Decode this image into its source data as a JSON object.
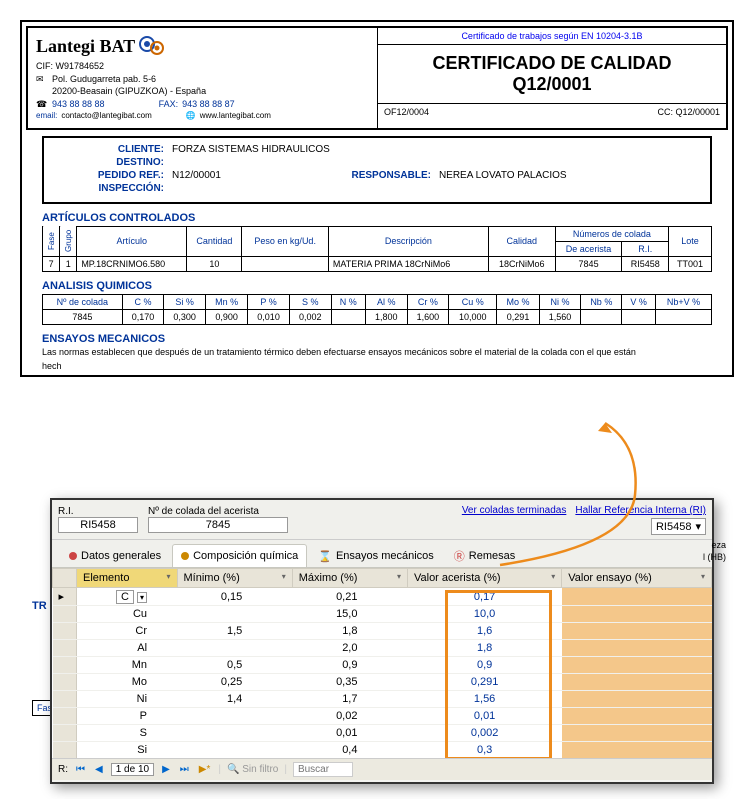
{
  "header": {
    "logo_text": "Lantegi BAT",
    "cif": "CIF: W91784652",
    "address1": "Pol. Gudugarreta pab. 5-6",
    "address2": "20200-Beasain (GIPUZKOA) - España",
    "phone_icon": "📞",
    "phone": "943 88 88 88",
    "fax_label": "FAX:",
    "fax": "943 88 88 87",
    "email_label": "email:",
    "email": "contacto@lantegibat.com",
    "web": "www.lantegibat.com",
    "cert_norm": "Certificado de trabajos según EN 10204-3.1B",
    "cert_title": "CERTIFICADO DE CALIDAD",
    "cert_num": "Q12/0001",
    "of_ref": "OF12/0004",
    "cc_ref": "CC: Q12/00001"
  },
  "client": {
    "cliente_lbl": "CLIENTE:",
    "cliente": "FORZA SISTEMAS HIDRAULICOS",
    "destino_lbl": "DESTINO:",
    "destino": "",
    "pedido_lbl": "PEDIDO REF.:",
    "pedido": "N12/00001",
    "resp_lbl": "RESPONSABLE:",
    "resp": "NEREA LOVATO PALACIOS",
    "insp_lbl": "INSPECCIÓN:",
    "insp": ""
  },
  "sections": {
    "articulos": "ARTÍCULOS CONTROLADOS",
    "analisis": "ANALISIS QUIMICOS",
    "ensayos": "ENSAYOS MECANICOS",
    "ensayos_note": "Las normas establecen que después de un tratamiento térmico deben efectuarse ensayos mecánicos sobre el material de la colada con el que están",
    "hech": "hech",
    "tr": "TR",
    "fas": "Fas"
  },
  "art_table": {
    "headers": {
      "fase": "Fase",
      "grupo": "Grupo",
      "articulo": "Artículo",
      "cantidad": "Cantidad",
      "peso": "Peso en kg/Ud.",
      "desc": "Descripción",
      "calidad": "Calidad",
      "colada": "Números de colada",
      "acerista": "De acerista",
      "ri": "R.I.",
      "lote": "Lote"
    },
    "row": {
      "fase": "7",
      "grupo": "1",
      "articulo": "MP.18CRNIMO6.580",
      "cantidad": "10",
      "peso": "",
      "desc": "MATERIA PRIMA 18CrNiMo6",
      "calidad": "18CrNiMo6",
      "acerista": "7845",
      "ri": "RI5458",
      "lote": "TT001"
    }
  },
  "chem_table": {
    "headers": [
      "Nº de colada",
      "C %",
      "Si %",
      "Mn %",
      "P %",
      "S %",
      "N %",
      "Al %",
      "Cr %",
      "Cu %",
      "Mo %",
      "Ni %",
      "Nb %",
      "V %",
      "Nb+V %"
    ],
    "row": [
      "7845",
      "0,170",
      "0,300",
      "0,900",
      "0,010",
      "0,002",
      "",
      "1,800",
      "1,600",
      "10,000",
      "0,291",
      "1,560",
      "",
      "",
      ""
    ]
  },
  "overlay": {
    "ri_lbl": "R.I.",
    "ri_val": "RI5458",
    "colada_lbl": "Nº de colada del acerista",
    "colada_val": "7845",
    "link1": "Ver coladas terminadas",
    "link2": "Hallar Referencia Interna (RI)",
    "dd_val": "RI5458",
    "side_text1": "eza",
    "side_text2": "l (HB)",
    "tabs": {
      "datos": "Datos generales",
      "comp": "Composición química",
      "ens": "Ensayos mecánicos",
      "rem": "Remesas"
    },
    "grid_headers": {
      "elem": "Elemento",
      "min": "Mínimo (%)",
      "max": "Máximo (%)",
      "acer": "Valor acerista (%)",
      "ens": "Valor ensayo (%)"
    },
    "rows": [
      {
        "e": "C",
        "min": "0,15",
        "max": "0,21",
        "v": "0,17"
      },
      {
        "e": "Cu",
        "min": "",
        "max": "15,0",
        "v": "10,0"
      },
      {
        "e": "Cr",
        "min": "1,5",
        "max": "1,8",
        "v": "1,6"
      },
      {
        "e": "Al",
        "min": "",
        "max": "2,0",
        "v": "1,8"
      },
      {
        "e": "Mn",
        "min": "0,5",
        "max": "0,9",
        "v": "0,9"
      },
      {
        "e": "Mo",
        "min": "0,25",
        "max": "0,35",
        "v": "0,291"
      },
      {
        "e": "Ni",
        "min": "1,4",
        "max": "1,7",
        "v": "1,56"
      },
      {
        "e": "P",
        "min": "",
        "max": "0,02",
        "v": "0,01"
      },
      {
        "e": "S",
        "min": "",
        "max": "0,01",
        "v": "0,002"
      },
      {
        "e": "Si",
        "min": "",
        "max": "0,4",
        "v": "0,3"
      }
    ],
    "nav": {
      "r": "R:",
      "page": "1 de 10",
      "filter": "Sin filtro",
      "search": "Buscar"
    }
  },
  "colors": {
    "accent": "#003399",
    "highlight": "#ed8b1c",
    "tab_bg": "#e8e4d8",
    "ens_bg": "#f4c78a"
  }
}
